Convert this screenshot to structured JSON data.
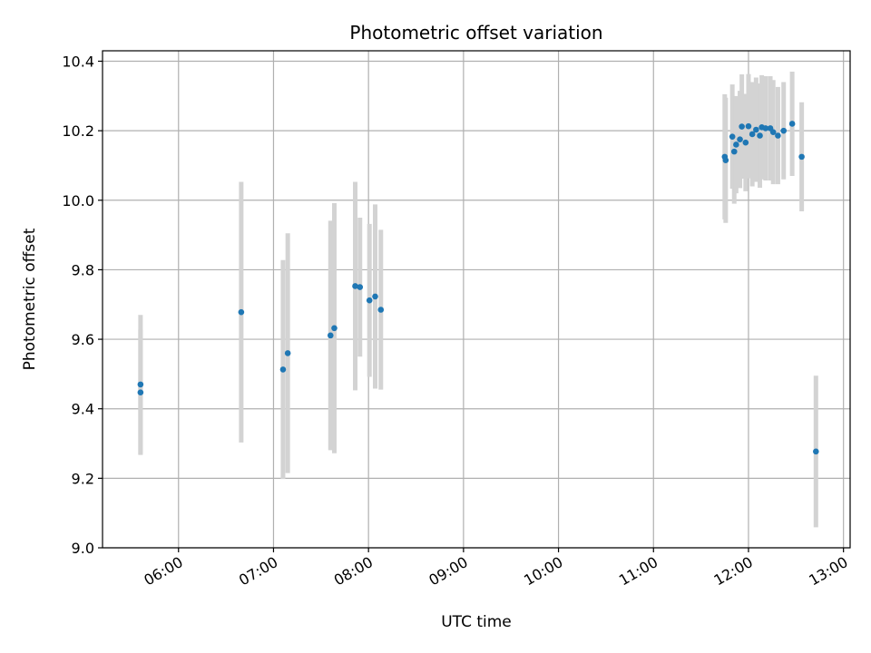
{
  "chart_data": {
    "type": "scatter",
    "title": "Photometric offset variation",
    "xlabel": "UTC time",
    "ylabel": "Photometric offset",
    "x_unit": "hours UTC",
    "xlim": [
      5.2,
      13.07
    ],
    "ylim": [
      9.0,
      10.43
    ],
    "grid": true,
    "x_ticks": [
      6,
      7,
      8,
      9,
      10,
      11,
      12,
      13
    ],
    "x_tick_labels": [
      "06:00",
      "07:00",
      "08:00",
      "09:00",
      "10:00",
      "11:00",
      "12:00",
      "13:00"
    ],
    "y_ticks": [
      9.0,
      9.2,
      9.4,
      9.6,
      9.8,
      10.0,
      10.2,
      10.4
    ],
    "y_tick_labels": [
      "9.0",
      "9.2",
      "9.4",
      "9.6",
      "9.8",
      "10.0",
      "10.2",
      "10.4"
    ],
    "marker_color": "#1f77b4",
    "errorbar_color": "#d3d3d3",
    "points": [
      {
        "x": 5.6,
        "y": 9.47,
        "err": 0.2
      },
      {
        "x": 5.6,
        "y": 9.447,
        "err": 0.18
      },
      {
        "x": 6.66,
        "y": 9.678,
        "err": 0.375
      },
      {
        "x": 7.1,
        "y": 9.513,
        "err": 0.315
      },
      {
        "x": 7.15,
        "y": 9.56,
        "err": 0.345
      },
      {
        "x": 7.6,
        "y": 9.611,
        "err": 0.33
      },
      {
        "x": 7.64,
        "y": 9.632,
        "err": 0.36
      },
      {
        "x": 7.86,
        "y": 9.753,
        "err": 0.3
      },
      {
        "x": 7.91,
        "y": 9.75,
        "err": 0.2
      },
      {
        "x": 8.01,
        "y": 9.712,
        "err": 0.22
      },
      {
        "x": 8.07,
        "y": 9.723,
        "err": 0.265
      },
      {
        "x": 8.13,
        "y": 9.685,
        "err": 0.23
      },
      {
        "x": 11.75,
        "y": 10.125,
        "err": 0.18
      },
      {
        "x": 11.76,
        "y": 10.115,
        "err": 0.18
      },
      {
        "x": 11.83,
        "y": 10.183,
        "err": 0.15
      },
      {
        "x": 11.85,
        "y": 10.14,
        "err": 0.15
      },
      {
        "x": 11.87,
        "y": 10.16,
        "err": 0.14
      },
      {
        "x": 11.91,
        "y": 10.175,
        "err": 0.14
      },
      {
        "x": 11.93,
        "y": 10.212,
        "err": 0.15
      },
      {
        "x": 11.97,
        "y": 10.166,
        "err": 0.14
      },
      {
        "x": 12.0,
        "y": 10.213,
        "err": 0.15
      },
      {
        "x": 12.04,
        "y": 10.19,
        "err": 0.15
      },
      {
        "x": 12.08,
        "y": 10.203,
        "err": 0.15
      },
      {
        "x": 12.12,
        "y": 10.186,
        "err": 0.15
      },
      {
        "x": 12.14,
        "y": 10.21,
        "err": 0.15
      },
      {
        "x": 12.18,
        "y": 10.207,
        "err": 0.15
      },
      {
        "x": 12.23,
        "y": 10.207,
        "err": 0.15
      },
      {
        "x": 12.26,
        "y": 10.196,
        "err": 0.15
      },
      {
        "x": 12.31,
        "y": 10.186,
        "err": 0.14
      },
      {
        "x": 12.37,
        "y": 10.2,
        "err": 0.14
      },
      {
        "x": 12.46,
        "y": 10.22,
        "err": 0.15
      },
      {
        "x": 12.56,
        "y": 10.125,
        "err": 0.157
      },
      {
        "x": 12.71,
        "y": 9.277,
        "err": 0.218
      }
    ]
  }
}
